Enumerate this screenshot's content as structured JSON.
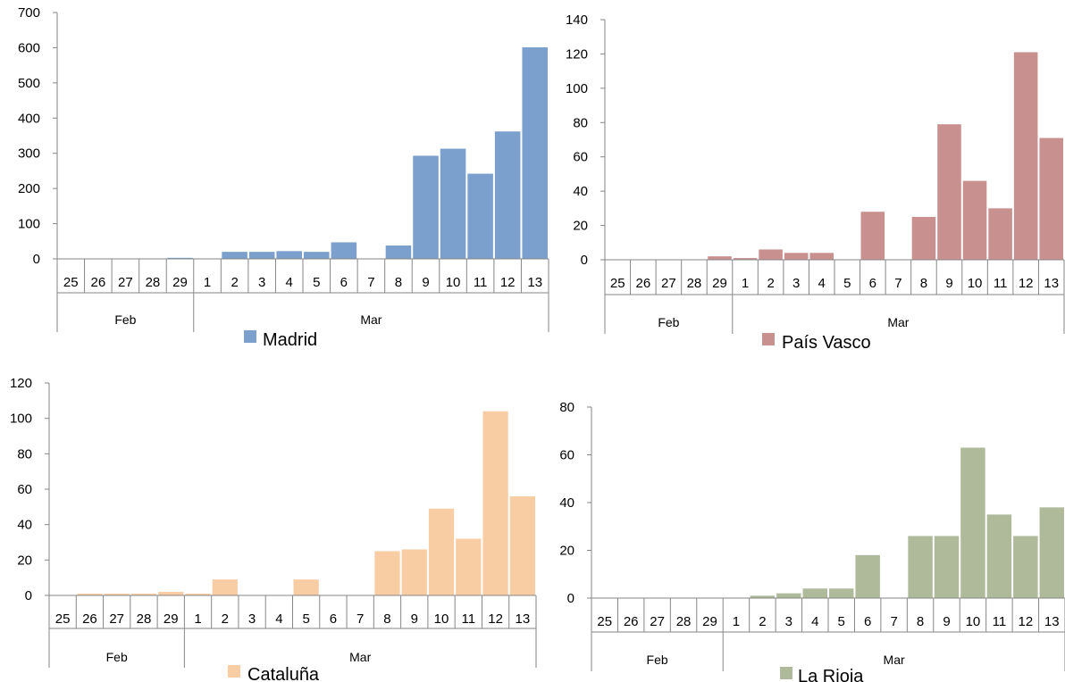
{
  "chart_data": [
    {
      "type": "bar",
      "categories": [
        "25",
        "26",
        "27",
        "28",
        "29",
        "1",
        "2",
        "3",
        "4",
        "5",
        "6",
        "7",
        "8",
        "9",
        "10",
        "11",
        "12",
        "13"
      ],
      "groups": [
        {
          "label": "Feb",
          "count": 5
        },
        {
          "label": "Mar",
          "count": 13
        }
      ],
      "series": [
        {
          "name": "Madrid",
          "color": "#7ba0cd",
          "values": [
            0,
            0,
            0,
            0,
            3,
            0,
            20,
            20,
            22,
            20,
            47,
            0,
            38,
            293,
            313,
            242,
            362,
            601
          ]
        }
      ],
      "ylim": [
        0,
        700
      ],
      "yticks": [
        0,
        100,
        200,
        300,
        400,
        500,
        600,
        700
      ],
      "legend": "bottom"
    },
    {
      "type": "bar",
      "categories": [
        "25",
        "26",
        "27",
        "28",
        "29",
        "1",
        "2",
        "3",
        "4",
        "5",
        "6",
        "7",
        "8",
        "9",
        "10",
        "11",
        "12",
        "13"
      ],
      "groups": [
        {
          "label": "Feb",
          "count": 5
        },
        {
          "label": "Mar",
          "count": 13
        }
      ],
      "series": [
        {
          "name": "País Vasco",
          "color": "#c99090",
          "values": [
            0,
            0,
            0,
            0,
            2,
            1,
            6,
            4,
            4,
            0,
            28,
            0,
            25,
            79,
            46,
            30,
            121,
            71
          ]
        }
      ],
      "ylim": [
        0,
        140
      ],
      "yticks": [
        0,
        20,
        40,
        60,
        80,
        100,
        120,
        140
      ],
      "legend": "bottom"
    },
    {
      "type": "bar",
      "categories": [
        "25",
        "26",
        "27",
        "28",
        "29",
        "1",
        "2",
        "3",
        "4",
        "5",
        "6",
        "7",
        "8",
        "9",
        "10",
        "11",
        "12",
        "13"
      ],
      "groups": [
        {
          "label": "Feb",
          "count": 5
        },
        {
          "label": "Mar",
          "count": 13
        }
      ],
      "series": [
        {
          "name": "Cataluña",
          "color": "#f9cda4",
          "values": [
            0,
            1,
            1,
            1,
            2,
            1,
            9,
            0,
            0,
            9,
            0,
            0,
            25,
            26,
            49,
            32,
            104,
            56
          ]
        }
      ],
      "ylim": [
        0,
        120
      ],
      "yticks": [
        0,
        20,
        40,
        60,
        80,
        100,
        120
      ],
      "legend": "bottom"
    },
    {
      "type": "bar",
      "categories": [
        "25",
        "26",
        "27",
        "28",
        "29",
        "1",
        "2",
        "3",
        "4",
        "5",
        "6",
        "7",
        "8",
        "9",
        "10",
        "11",
        "12",
        "13"
      ],
      "groups": [
        {
          "label": "Feb",
          "count": 5
        },
        {
          "label": "Mar",
          "count": 13
        }
      ],
      "series": [
        {
          "name": "La Rioja",
          "color": "#afba9a",
          "values": [
            0,
            0,
            0,
            0,
            0,
            0,
            1,
            2,
            4,
            4,
            18,
            0,
            26,
            26,
            63,
            35,
            26,
            38
          ]
        }
      ],
      "ylim": [
        0,
        80
      ],
      "yticks": [
        0,
        20,
        40,
        60,
        80
      ],
      "legend": "bottom"
    }
  ]
}
